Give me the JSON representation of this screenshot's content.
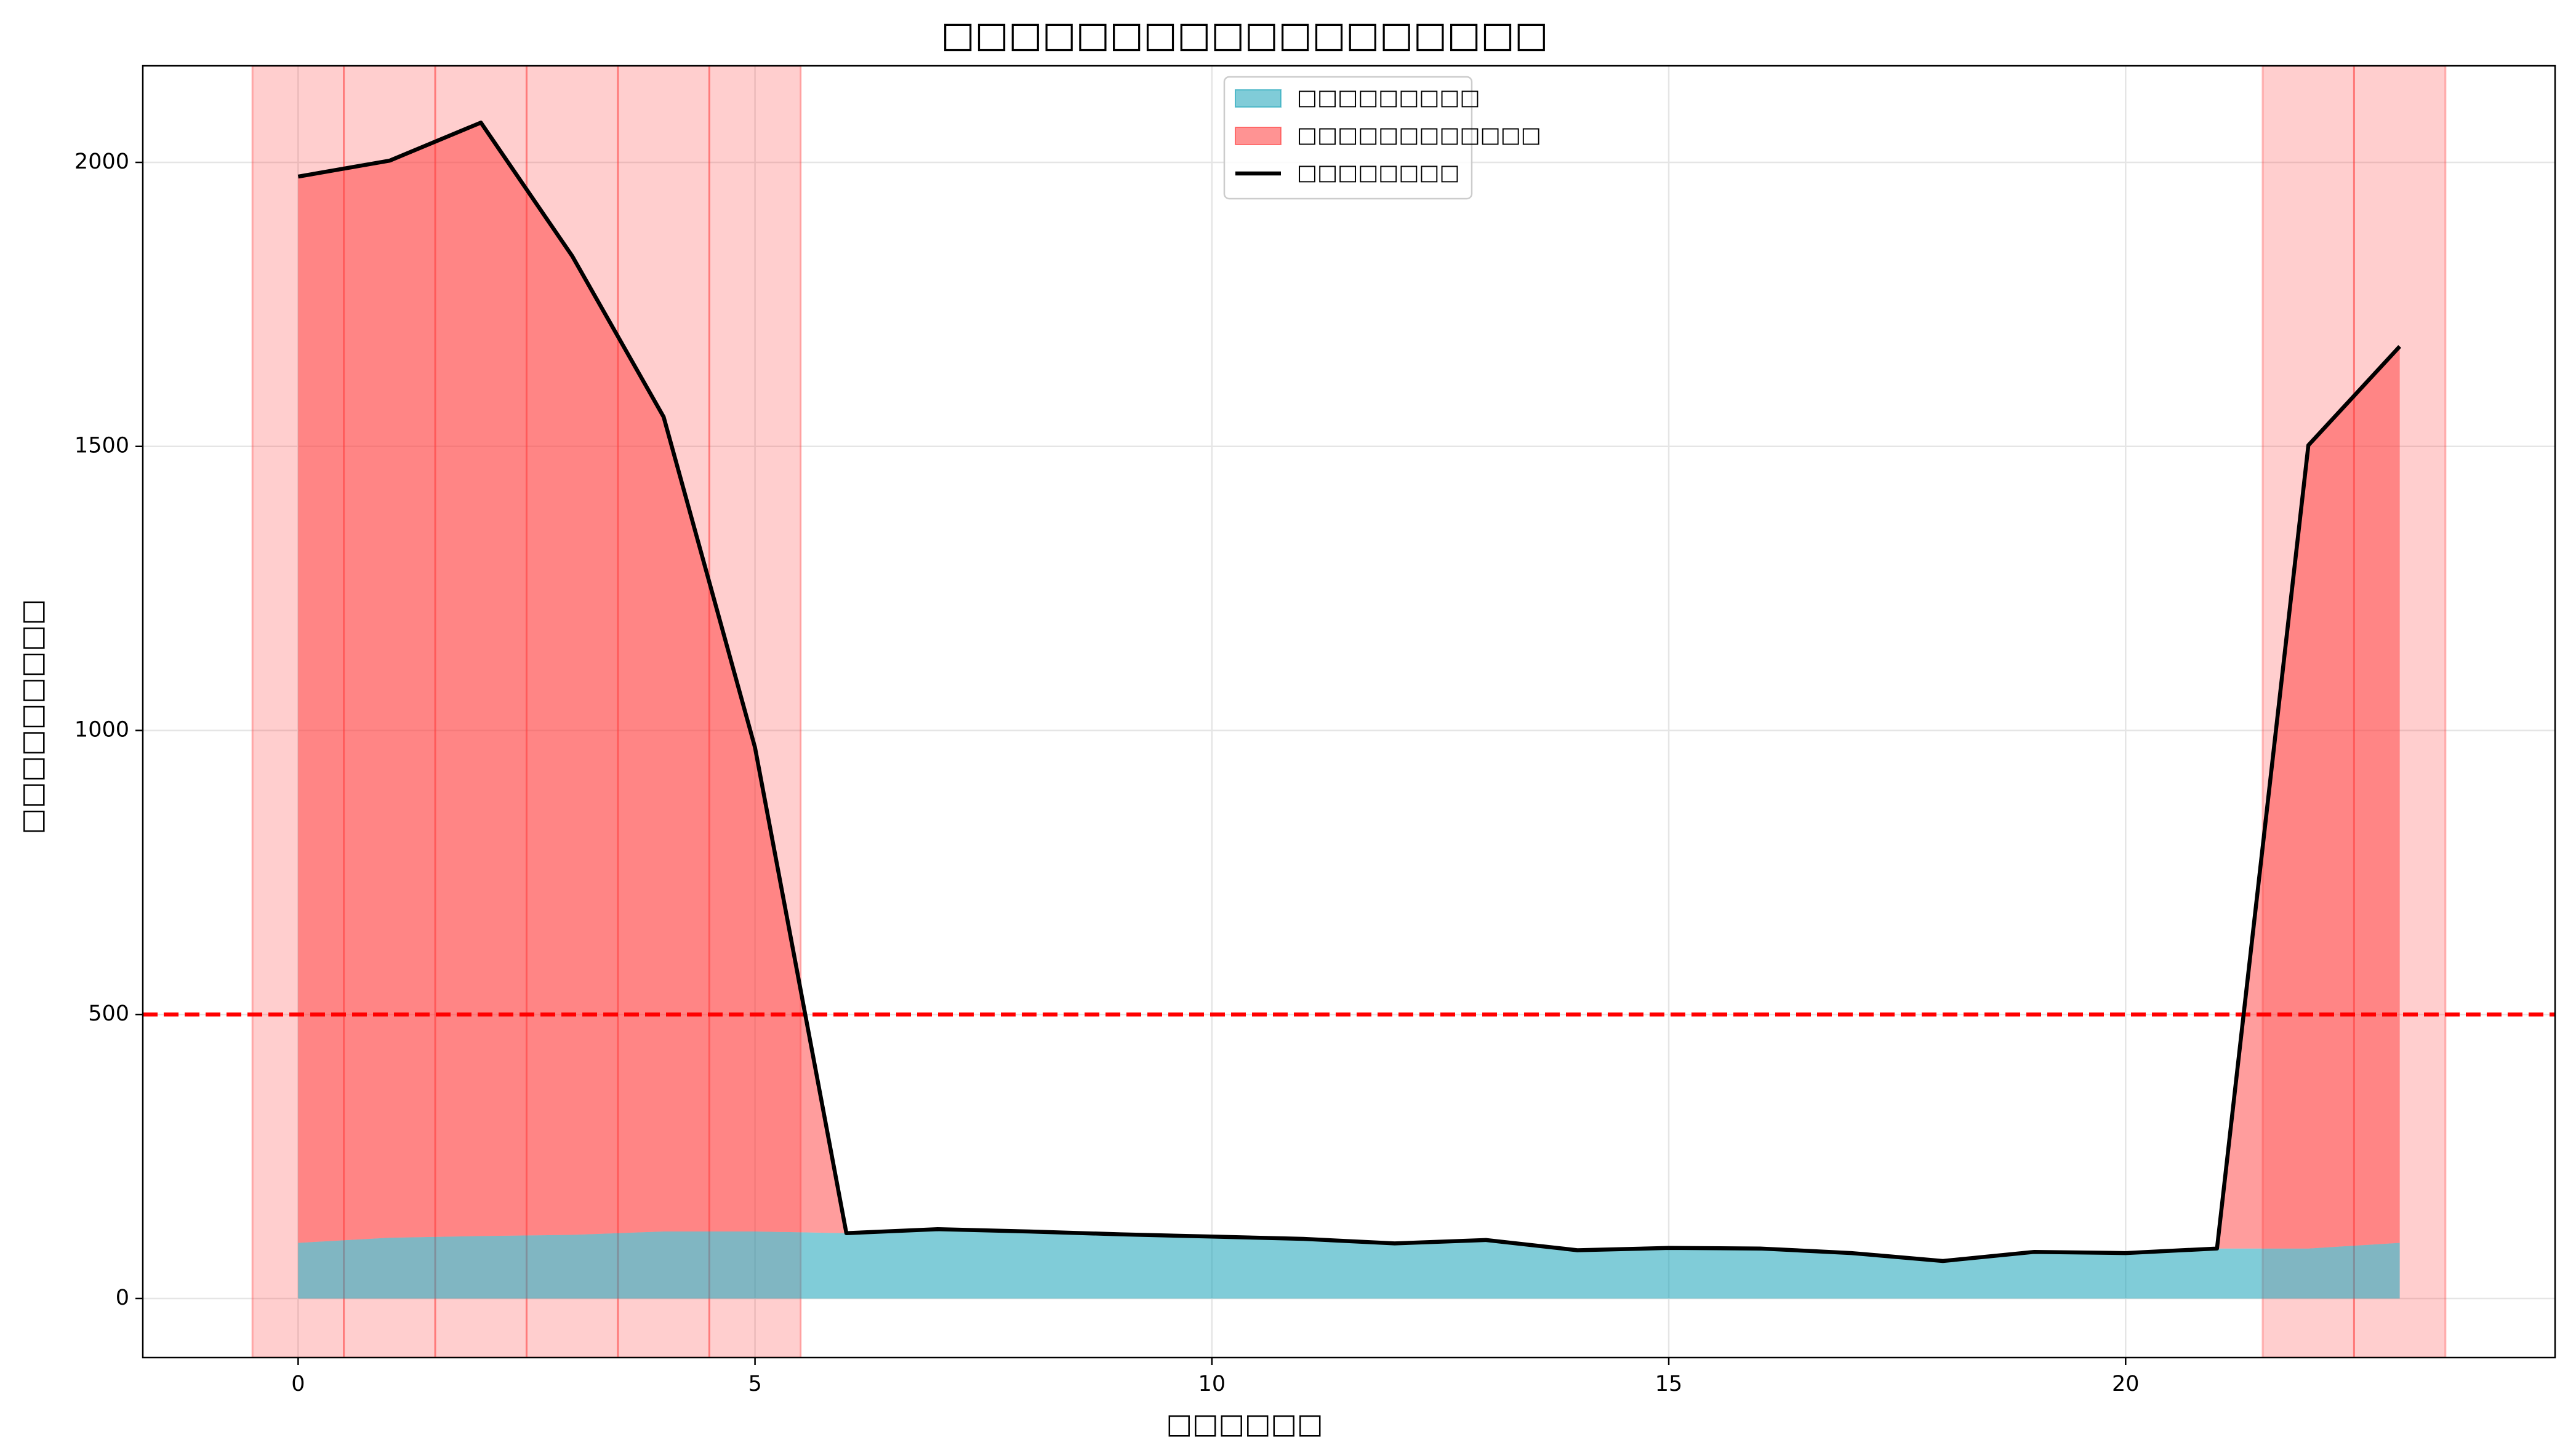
{
  "chart_data": {
    "type": "area",
    "title": "□□□□□□□□□□□□□□□□□□",
    "x_label": "□□□□□□",
    "y_label": "□□□□□□□□□",
    "x": [
      0,
      1,
      2,
      3,
      4,
      5,
      6,
      7,
      8,
      9,
      10,
      11,
      12,
      13,
      14,
      15,
      16,
      17,
      18,
      19,
      20,
      21,
      22,
      23
    ],
    "series": [
      {
        "name": "□□□□□□□□□",
        "color": "#17a2b8",
        "kind": "area",
        "values": [
          98,
          107,
          110,
          112,
          118,
          118,
          115,
          122,
          118,
          113,
          109,
          105,
          97,
          103,
          85,
          89,
          88,
          80,
          66,
          82,
          80,
          88,
          88,
          98
        ]
      },
      {
        "name": "□□□□□□□□□□□□",
        "color": "#ff3b3b",
        "kind": "between"
      },
      {
        "name": "□□□□□□□□",
        "color": "#000000",
        "kind": "line",
        "values": [
          1975,
          2003,
          2070,
          1835,
          1552,
          970,
          115,
          122,
          118,
          113,
          109,
          105,
          97,
          103,
          85,
          89,
          88,
          80,
          66,
          82,
          80,
          88,
          1502,
          1676
        ]
      }
    ],
    "anomaly_hours": [
      0,
      1,
      2,
      3,
      4,
      5,
      22,
      23
    ],
    "threshold": 500,
    "xlim": [
      -1.7,
      24.7
    ],
    "xticks": [
      0,
      5,
      10,
      15,
      20
    ],
    "ylim": [
      -104,
      2170
    ],
    "yticks": [
      0,
      500,
      1000,
      1500,
      2000
    ],
    "grid": true,
    "legend": "upper center"
  }
}
